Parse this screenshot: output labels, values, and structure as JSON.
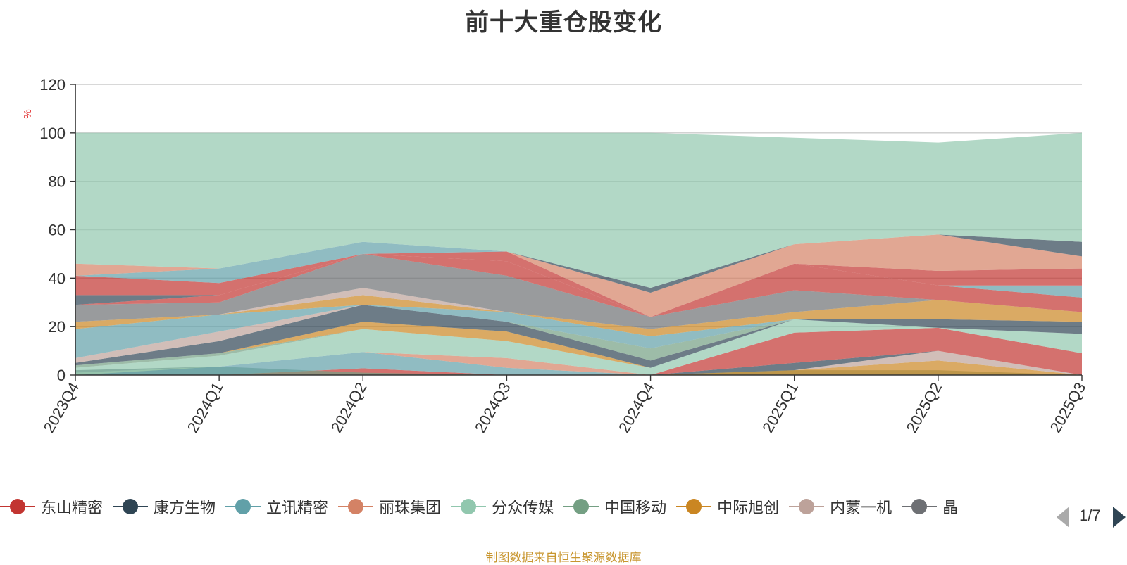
{
  "title": "前十大重仓股变化",
  "source_note": "制图数据来自恒生聚源数据库",
  "legend_pager": "1/7",
  "chart_data": {
    "type": "area",
    "title": "前十大重仓股变化",
    "ylabel": "%",
    "ylim": [
      0,
      120
    ],
    "yticks": [
      0,
      20,
      40,
      60,
      80,
      100,
      120
    ],
    "categories": [
      "2023Q4",
      "2024Q1",
      "2024Q2",
      "2024Q3",
      "2024Q4",
      "2025Q1",
      "2025Q2",
      "2025Q3"
    ],
    "legend": [
      "东山精密",
      "康方生物",
      "立讯精密",
      "丽珠集团",
      "分众传媒",
      "中国移动",
      "中际旭创",
      "内蒙一机",
      "晶"
    ],
    "legend_colors": [
      "#c23531",
      "#2f4554",
      "#61a0a8",
      "#d48265",
      "#91c7ae",
      "#749f83",
      "#ca8622",
      "#bda29a",
      "#6e7074"
    ],
    "bands": [
      {
        "name": "东山精密",
        "color": "#c23531",
        "lower": [
          0,
          0,
          0,
          0,
          0,
          0,
          0,
          0
        ],
        "upper": [
          0,
          0,
          2.8,
          0,
          0,
          0,
          0,
          0
        ]
      },
      {
        "name": "中国移动",
        "color": "#749f83",
        "lower": [
          0,
          0,
          0,
          0,
          0,
          0,
          0,
          0
        ],
        "upper": [
          1,
          3.5,
          1,
          0,
          0,
          2,
          2,
          0
        ]
      },
      {
        "name": "中际旭创",
        "color": "#ca8622",
        "lower": [
          0,
          0,
          0,
          0,
          0,
          0,
          0,
          0
        ],
        "upper": [
          0,
          0,
          0,
          0,
          0,
          2,
          6,
          0
        ]
      },
      {
        "name": "内蒙一机",
        "color": "#bda29a",
        "lower": [
          0,
          0,
          0,
          0,
          0,
          2,
          6,
          0
        ],
        "upper": [
          0,
          0,
          0,
          0,
          0,
          2,
          10,
          0
        ]
      },
      {
        "name": "康方生物",
        "color": "#2f4554",
        "lower": [
          1,
          3.5,
          2.8,
          0,
          0,
          2,
          10,
          0
        ],
        "upper": [
          2,
          3.5,
          2.8,
          0,
          0,
          5,
          10,
          0
        ]
      },
      {
        "name": "立讯精密",
        "color": "#61a0a8",
        "lower": [
          0,
          0,
          2.8,
          0,
          0,
          5,
          10,
          0
        ],
        "upper": [
          0,
          3.5,
          9.5,
          3,
          0,
          5,
          10,
          0
        ]
      },
      {
        "name": "丽珠集团",
        "color": "#d48265",
        "lower": [
          0,
          3.5,
          9.5,
          3,
          0,
          5,
          10,
          0
        ],
        "upper": [
          0,
          3.5,
          9.5,
          7,
          0,
          5,
          10,
          0
        ]
      },
      {
        "name": "东山精密",
        "color": "#c23531",
        "lower": [
          0,
          3.5,
          9.5,
          7,
          0,
          5,
          10,
          0
        ],
        "upper": [
          0,
          3.5,
          9.5,
          7,
          0,
          17.5,
          19.5,
          9
        ]
      },
      {
        "name": "分众传媒",
        "color": "#91c7ae",
        "lower": [
          0,
          3.5,
          9.5,
          7,
          0,
          17.5,
          19.5,
          9
        ],
        "upper": [
          3,
          8,
          19,
          14,
          3,
          23,
          19.5,
          17
        ]
      },
      {
        "name": "中国移动",
        "color": "#749f83",
        "lower": [
          3,
          8,
          19,
          14,
          3,
          23,
          19.5,
          17
        ],
        "upper": [
          4,
          9,
          19,
          14,
          3,
          23,
          19.5,
          17
        ]
      },
      {
        "name": "中际旭创",
        "color": "#ca8622",
        "lower": [
          4,
          9,
          19,
          14,
          3,
          23,
          19.5,
          17
        ],
        "upper": [
          4,
          9,
          22,
          18,
          3,
          23,
          19.5,
          17
        ]
      },
      {
        "name": "康方生物",
        "color": "#2f4554",
        "lower": [
          4,
          9,
          22,
          18,
          3,
          23,
          19.5,
          17
        ],
        "upper": [
          5,
          14,
          29,
          22,
          6,
          23,
          23,
          22
        ]
      },
      {
        "name": "中国移动",
        "color": "#749f83",
        "lower": [
          5,
          14,
          29,
          22,
          6,
          23,
          23,
          22
        ],
        "upper": [
          5,
          14,
          29,
          22,
          11,
          23,
          23,
          22
        ]
      },
      {
        "name": "内蒙一机",
        "color": "#bda29a",
        "lower": [
          5,
          14,
          29,
          22,
          11,
          23,
          23,
          22
        ],
        "upper": [
          7,
          18,
          29,
          22,
          11,
          23,
          23,
          22
        ]
      },
      {
        "name": "中际旭创",
        "color": "#ca8622",
        "lower": [
          7,
          18,
          29,
          22,
          11,
          23,
          23,
          22
        ],
        "upper": [
          7,
          18,
          29,
          22,
          11,
          23,
          23,
          22
        ]
      },
      {
        "name": "立讯精密",
        "color": "#61a0a8",
        "lower": [
          7,
          18,
          29,
          22,
          11,
          23,
          23,
          22
        ],
        "upper": [
          19,
          25,
          29,
          26,
          16,
          23,
          23,
          22
        ]
      },
      {
        "name": "中际旭创",
        "color": "#ca8622",
        "lower": [
          19,
          25,
          29,
          26,
          16,
          23,
          23,
          22
        ],
        "upper": [
          22,
          25,
          33,
          26,
          19,
          26,
          31,
          26
        ]
      },
      {
        "name": "内蒙一机",
        "color": "#bda29a",
        "lower": [
          22,
          25,
          33,
          26,
          19,
          26,
          31,
          26
        ],
        "upper": [
          22,
          25,
          36,
          26,
          19,
          26,
          31,
          26
        ]
      },
      {
        "name": "晶",
        "color": "#6e7074",
        "lower": [
          22,
          25,
          36,
          26,
          19,
          26,
          31,
          26
        ],
        "upper": [
          29,
          30,
          50,
          41,
          24,
          35,
          31,
          26
        ]
      },
      {
        "name": "东山精密",
        "color": "#c23531",
        "lower": [
          29,
          30,
          50,
          41,
          24,
          35,
          31,
          26
        ],
        "upper": [
          29,
          33,
          50,
          47,
          24,
          46,
          37,
          32
        ]
      },
      {
        "name": "康方生物",
        "color": "#2f4554",
        "lower": [
          29,
          33,
          50,
          47,
          24,
          46,
          37,
          32
        ],
        "upper": [
          33,
          33,
          50,
          47,
          24,
          46,
          37,
          32
        ]
      },
      {
        "name": "立讯精密",
        "color": "#61a0a8",
        "lower": [
          33,
          33,
          50,
          47,
          24,
          46,
          37,
          32
        ],
        "upper": [
          33,
          33,
          50,
          47,
          24,
          46,
          37,
          37
        ]
      },
      {
        "name": "东山精密",
        "color": "#c23531",
        "lower": [
          33,
          33,
          50,
          47,
          24,
          46,
          37,
          37
        ],
        "upper": [
          41,
          38,
          50,
          51,
          24,
          46,
          43,
          44
        ]
      },
      {
        "name": "立讯精密",
        "color": "#61a0a8",
        "lower": [
          41,
          38,
          50,
          51,
          24,
          46,
          43,
          44
        ],
        "upper": [
          41,
          44,
          55,
          51,
          24,
          46,
          43,
          44
        ]
      },
      {
        "name": "丽珠集团",
        "color": "#d48265",
        "lower": [
          41,
          44,
          55,
          51,
          24,
          46,
          43,
          44
        ],
        "upper": [
          46,
          44,
          55,
          51,
          34,
          54,
          58,
          49
        ]
      },
      {
        "name": "康方生物",
        "color": "#2f4554",
        "lower": [
          46,
          44,
          55,
          51,
          34,
          54,
          58,
          49
        ],
        "upper": [
          46,
          44,
          55,
          51,
          36,
          54,
          58,
          55
        ]
      },
      {
        "name": "分众传媒",
        "color": "#91c7ae",
        "lower": [
          46,
          44,
          55,
          51,
          36,
          54,
          58,
          55
        ],
        "upper": [
          100,
          100,
          100,
          100,
          100,
          98,
          96,
          100
        ]
      }
    ]
  }
}
